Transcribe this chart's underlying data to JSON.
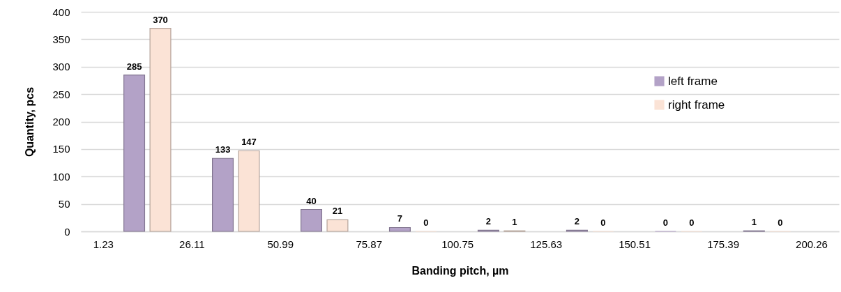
{
  "chart_data": {
    "type": "histogram",
    "xlabel": "Banding pitch, µm",
    "ylabel": "Quantity, pcs",
    "bins": [
      1.23,
      26.11,
      50.99,
      75.87,
      100.75,
      125.63,
      150.51,
      175.39,
      200.26
    ],
    "series": [
      {
        "name": "left frame",
        "color": "#b3a2c7",
        "values": [
          285,
          133,
          40,
          7,
          2,
          2,
          0,
          1
        ]
      },
      {
        "name": "right frame",
        "color": "#fbe3d6",
        "values": [
          370,
          147,
          21,
          0,
          1,
          0,
          0,
          0
        ]
      }
    ],
    "xlim": [
      -5,
      208
    ],
    "xticks": [
      1.23,
      26.11,
      50.99,
      75.87,
      100.75,
      125.63,
      150.51,
      175.39,
      200.26
    ],
    "ylim": [
      0,
      400
    ],
    "yticks": [
      0,
      50,
      100,
      150,
      200,
      250,
      300,
      350,
      400
    ],
    "grid": "y",
    "legend": "right",
    "data_labels": true
  }
}
